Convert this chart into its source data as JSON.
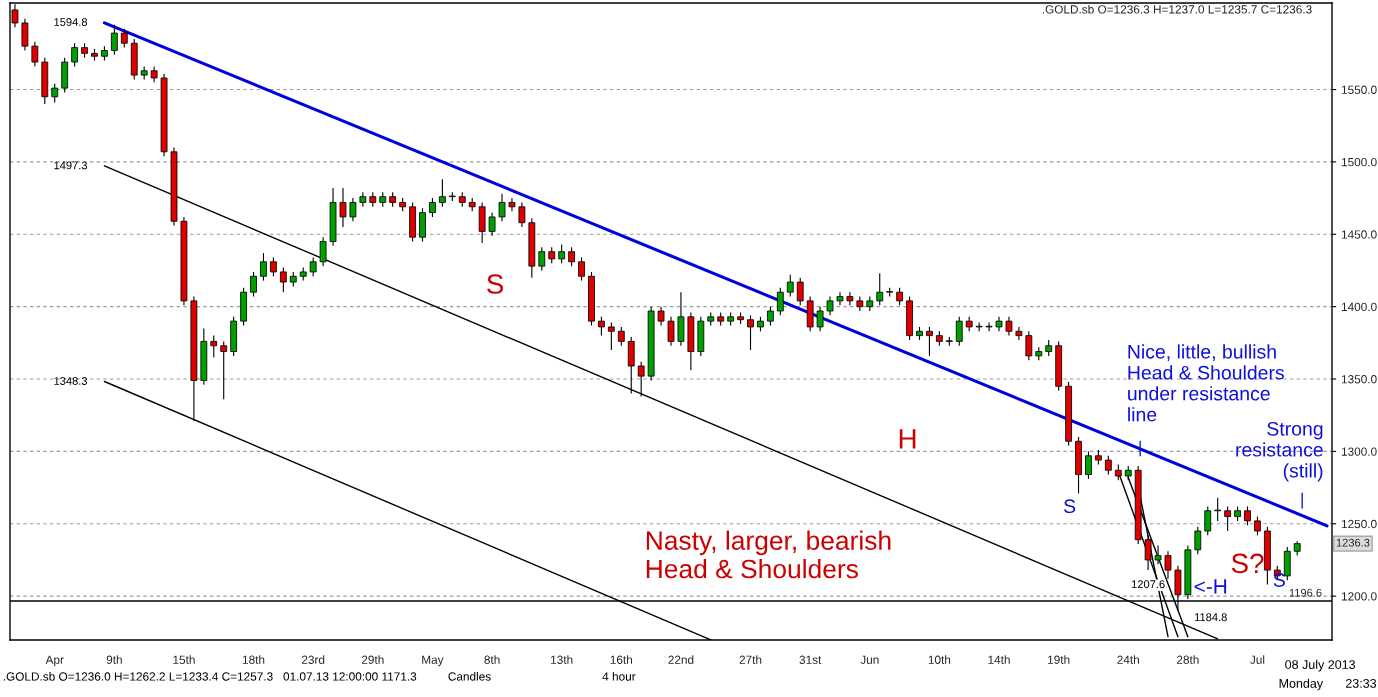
{
  "chart_data": {
    "type": "candlestick",
    "title": ".GOLD.sb O=1236.3 H=1237.0 L=1235.7 C=1236.3",
    "categories": [
      null,
      null,
      null,
      null,
      "Apr",
      null,
      null,
      null,
      null,
      null,
      "9th",
      null,
      null,
      null,
      null,
      null,
      null,
      "15th",
      null,
      null,
      null,
      null,
      null,
      null,
      "18th",
      null,
      null,
      null,
      null,
      null,
      "23rd",
      null,
      null,
      null,
      null,
      null,
      "29th",
      null,
      null,
      null,
      null,
      null,
      "May",
      null,
      null,
      null,
      null,
      null,
      "8th",
      null,
      null,
      null,
      null,
      null,
      null,
      "13th",
      null,
      null,
      null,
      null,
      null,
      "16th",
      null,
      null,
      null,
      null,
      null,
      "22nd",
      null,
      null,
      null,
      null,
      null,
      null,
      "27th",
      null,
      null,
      null,
      null,
      null,
      "31st",
      null,
      null,
      null,
      null,
      null,
      "Jun",
      null,
      null,
      null,
      null,
      null,
      null,
      "10th",
      null,
      null,
      null,
      null,
      null,
      "14th",
      null,
      null,
      null,
      null,
      null,
      "19th",
      null,
      null,
      null,
      null,
      null,
      null,
      "24th",
      null,
      null,
      null,
      null,
      null,
      "28th",
      null,
      null,
      null,
      null,
      null,
      null,
      "Jul",
      null,
      null,
      null,
      null,
      null,
      null,
      null
    ],
    "ohlc": [
      [
        1605,
        1609,
        1593,
        1596
      ],
      [
        1596,
        1599,
        1577,
        1580
      ],
      [
        1580,
        1583,
        1566,
        1569
      ],
      [
        1569,
        1572,
        1540,
        1545
      ],
      [
        1545,
        1554,
        1541,
        1551
      ],
      [
        1551,
        1572,
        1548,
        1569
      ],
      [
        1569,
        1582,
        1566,
        1579
      ],
      [
        1579,
        1582,
        1572,
        1575
      ],
      [
        1575,
        1578,
        1570,
        1573
      ],
      [
        1573,
        1580,
        1570,
        1577
      ],
      [
        1577,
        1594.8,
        1574,
        1589
      ],
      [
        1589,
        1592,
        1579,
        1582
      ],
      [
        1582,
        1585,
        1557,
        1560
      ],
      [
        1560,
        1566,
        1557,
        1563
      ],
      [
        1563,
        1566,
        1555,
        1558
      ],
      [
        1558,
        1561,
        1504,
        1507
      ],
      [
        1507,
        1510,
        1456,
        1459
      ],
      [
        1459,
        1462,
        1401,
        1404
      ],
      [
        1404,
        1407,
        1321,
        1349
      ],
      [
        1349,
        1385,
        1346,
        1376
      ],
      [
        1376,
        1380,
        1365,
        1373
      ],
      [
        1373,
        1376,
        1336,
        1369
      ],
      [
        1369,
        1393,
        1366,
        1390
      ],
      [
        1390,
        1413,
        1387,
        1410
      ],
      [
        1410,
        1424,
        1407,
        1421
      ],
      [
        1421,
        1437,
        1418,
        1431
      ],
      [
        1431,
        1434,
        1421,
        1424
      ],
      [
        1424,
        1427,
        1410,
        1417
      ],
      [
        1417,
        1424,
        1414,
        1421
      ],
      [
        1421,
        1427,
        1418,
        1424
      ],
      [
        1424,
        1434,
        1421,
        1431
      ],
      [
        1431,
        1448,
        1428,
        1445
      ],
      [
        1445,
        1482,
        1442,
        1472
      ],
      [
        1472,
        1482,
        1455,
        1462
      ],
      [
        1462,
        1475,
        1459,
        1472
      ],
      [
        1472,
        1479,
        1469,
        1476
      ],
      [
        1476,
        1479,
        1469,
        1472
      ],
      [
        1472,
        1479,
        1469,
        1476
      ],
      [
        1476,
        1479,
        1469,
        1472
      ],
      [
        1472,
        1475,
        1466,
        1469
      ],
      [
        1469,
        1472,
        1445,
        1448
      ],
      [
        1448,
        1468,
        1445,
        1465
      ],
      [
        1465,
        1475,
        1462,
        1472
      ],
      [
        1472,
        1488,
        1469,
        1476
      ],
      [
        1476,
        1479,
        1473,
        1476
      ],
      [
        1476,
        1479,
        1469,
        1472
      ],
      [
        1472,
        1475,
        1466,
        1469
      ],
      [
        1469,
        1472,
        1444,
        1452
      ],
      [
        1452,
        1465,
        1449,
        1462
      ],
      [
        1462,
        1478,
        1459,
        1472
      ],
      [
        1472,
        1475,
        1466,
        1469
      ],
      [
        1469,
        1472,
        1455,
        1458
      ],
      [
        1458,
        1461,
        1420,
        1428
      ],
      [
        1428,
        1441,
        1425,
        1438
      ],
      [
        1438,
        1441,
        1430,
        1433
      ],
      [
        1433,
        1443,
        1430,
        1438
      ],
      [
        1438,
        1441,
        1428,
        1431
      ],
      [
        1431,
        1434,
        1418,
        1421
      ],
      [
        1421,
        1424,
        1387,
        1390
      ],
      [
        1390,
        1393,
        1380,
        1386
      ],
      [
        1386,
        1389,
        1370,
        1383
      ],
      [
        1383,
        1386,
        1373,
        1376
      ],
      [
        1376,
        1379,
        1340,
        1359
      ],
      [
        1359,
        1362,
        1338,
        1352
      ],
      [
        1352,
        1400,
        1349,
        1397
      ],
      [
        1397,
        1400,
        1387,
        1390
      ],
      [
        1390,
        1393,
        1373,
        1376
      ],
      [
        1376,
        1410,
        1373,
        1393
      ],
      [
        1393,
        1396,
        1356,
        1369
      ],
      [
        1369,
        1393,
        1366,
        1390
      ],
      [
        1390,
        1396,
        1387,
        1393
      ],
      [
        1393,
        1396,
        1387,
        1390
      ],
      [
        1390,
        1396,
        1387,
        1393
      ],
      [
        1393,
        1396,
        1388,
        1391
      ],
      [
        1391,
        1394,
        1370,
        1386
      ],
      [
        1386,
        1393,
        1383,
        1390
      ],
      [
        1390,
        1400,
        1387,
        1397
      ],
      [
        1397,
        1413,
        1394,
        1410
      ],
      [
        1410,
        1422,
        1407,
        1417
      ],
      [
        1417,
        1420,
        1401,
        1404
      ],
      [
        1404,
        1407,
        1383,
        1386
      ],
      [
        1386,
        1400,
        1383,
        1397
      ],
      [
        1397,
        1407,
        1394,
        1404
      ],
      [
        1404,
        1410,
        1401,
        1407
      ],
      [
        1407,
        1410,
        1401,
        1404
      ],
      [
        1404,
        1407,
        1397,
        1400
      ],
      [
        1400,
        1407,
        1397,
        1404
      ],
      [
        1404,
        1423,
        1401,
        1410
      ],
      [
        1410,
        1413,
        1407,
        1410
      ],
      [
        1410,
        1413,
        1401,
        1404
      ],
      [
        1404,
        1407,
        1377,
        1380
      ],
      [
        1380,
        1386,
        1377,
        1383
      ],
      [
        1383,
        1386,
        1366,
        1380
      ],
      [
        1380,
        1383,
        1373,
        1376
      ],
      [
        1376,
        1379,
        1373,
        1376
      ],
      [
        1376,
        1393,
        1373,
        1390
      ],
      [
        1390,
        1393,
        1383,
        1386
      ],
      [
        1386,
        1389,
        1383,
        1386
      ],
      [
        1386,
        1389,
        1383,
        1386
      ],
      [
        1386,
        1393,
        1383,
        1390
      ],
      [
        1390,
        1393,
        1380,
        1383
      ],
      [
        1383,
        1386,
        1377,
        1380
      ],
      [
        1380,
        1383,
        1363,
        1366
      ],
      [
        1366,
        1372,
        1363,
        1369
      ],
      [
        1369,
        1377,
        1366,
        1373
      ],
      [
        1373,
        1376,
        1342,
        1345
      ],
      [
        1345,
        1348,
        1304,
        1307
      ],
      [
        1307,
        1310,
        1271,
        1284
      ],
      [
        1284,
        1300,
        1281,
        1297
      ],
      [
        1297,
        1301,
        1291,
        1294
      ],
      [
        1294,
        1297,
        1284,
        1287
      ],
      [
        1287,
        1291,
        1280,
        1283
      ],
      [
        1283,
        1290,
        1280,
        1287
      ],
      [
        1287,
        1290,
        1236,
        1239
      ],
      [
        1239,
        1242,
        1218,
        1225
      ],
      [
        1225,
        1235,
        1222,
        1228
      ],
      [
        1228,
        1231,
        1212,
        1218
      ],
      [
        1218,
        1221,
        1190,
        1201
      ],
      [
        1201,
        1235,
        1198,
        1232
      ],
      [
        1232,
        1248,
        1229,
        1245
      ],
      [
        1245,
        1262,
        1242,
        1259
      ],
      [
        1259,
        1268,
        1252,
        1259
      ],
      [
        1259,
        1262,
        1245,
        1255
      ],
      [
        1255,
        1262,
        1252,
        1259
      ],
      [
        1259,
        1262,
        1249,
        1252
      ],
      [
        1252,
        1255,
        1242,
        1245
      ],
      [
        1245,
        1248,
        1208,
        1218
      ],
      [
        1218,
        1221,
        1211,
        1214
      ],
      [
        1214,
        1234,
        1211,
        1231
      ],
      [
        1231,
        1238,
        1228,
        1236.3
      ],
      null,
      null,
      null
    ],
    "colors": [
      "#e00000",
      "#e00000",
      "#e00000",
      "#e00000",
      "#00a000",
      "#00a000",
      "#00a000",
      "#e00000",
      "#e00000",
      "#00a000",
      "#00a000",
      "#e00000",
      "#e00000",
      "#00a000",
      "#e00000",
      "#e00000",
      "#e00000",
      "#e00000",
      "#e00000",
      "#00a000",
      "#e00000",
      "#e00000",
      "#00a000",
      "#00a000",
      "#00a000",
      "#00a000",
      "#e00000",
      "#e00000",
      "#00a000",
      "#00a000",
      "#00a000",
      "#00a000",
      "#00a000",
      "#e00000",
      "#00a000",
      "#00a000",
      "#e00000",
      "#00a000",
      "#e00000",
      "#e00000",
      "#e00000",
      "#00a000",
      "#00a000",
      "#00a000",
      "#00a000",
      "#e00000",
      "#e00000",
      "#e00000",
      "#00a000",
      "#00a000",
      "#e00000",
      "#e00000",
      "#e00000",
      "#00a000",
      "#e00000",
      "#00a000",
      "#e00000",
      "#e00000",
      "#e00000",
      "#e00000",
      "#e00000",
      "#e00000",
      "#e00000",
      "#e00000",
      "#00a000",
      "#e00000",
      "#e00000",
      "#00a000",
      "#e00000",
      "#00a000",
      "#00a000",
      "#e00000",
      "#00a000",
      "#e00000",
      "#e00000",
      "#00a000",
      "#00a000",
      "#00a000",
      "#00a000",
      "#e00000",
      "#e00000",
      "#00a000",
      "#00a000",
      "#00a000",
      "#e00000",
      "#e00000",
      "#00a000",
      "#00a000",
      "#00a000",
      "#e00000",
      "#e00000",
      "#00a000",
      "#e00000",
      "#e00000",
      "#00a000",
      "#00a000",
      "#e00000",
      "#00a000",
      "#00a000",
      "#00a000",
      "#e00000",
      "#e00000",
      "#e00000",
      "#00a000",
      "#00a000",
      "#e00000",
      "#e00000",
      "#e00000",
      "#00a000",
      "#e00000",
      "#e00000",
      "#e00000",
      "#00a000",
      "#e00000",
      "#e00000",
      "#00a000",
      "#e00000",
      "#e00000",
      "#00a000",
      "#00a000",
      "#00a000",
      "#00a000",
      "#e00000",
      "#00a000",
      "#e00000",
      "#e00000",
      "#e00000",
      "#e00000",
      "#00a000",
      "#00a000",
      null,
      null,
      null
    ],
    "series": [
      {
        "type": "line",
        "color": "#0000dd",
        "values": [
          null,
          null,
          null,
          null,
          null,
          null,
          null,
          null,
          null,
          1596.1,
          null,
          null,
          null,
          null,
          null,
          null,
          null,
          null,
          null,
          null,
          null,
          null,
          null,
          null,
          null,
          null,
          null,
          null,
          null,
          null,
          null,
          null,
          null,
          null,
          null,
          null,
          null,
          null,
          null,
          null,
          null,
          null,
          null,
          null,
          null,
          null,
          null,
          null,
          null,
          null,
          null,
          null,
          null,
          null,
          null,
          null,
          null,
          null,
          null,
          null,
          null,
          null,
          null,
          null,
          null,
          null,
          null,
          null,
          null,
          null,
          null,
          null,
          null,
          null,
          null,
          null,
          null,
          null,
          null,
          null,
          null,
          null,
          null,
          null,
          null,
          null,
          null,
          null,
          null,
          null,
          null,
          null,
          null,
          null,
          null,
          null,
          null,
          null,
          null,
          null,
          null,
          null,
          null,
          null,
          null,
          null,
          null,
          null,
          null,
          null,
          null,
          null,
          null,
          null,
          null,
          null,
          null,
          null,
          null,
          null,
          null,
          null,
          null,
          null,
          null,
          null,
          null,
          null,
          null,
          null,
          null,
          null,
          1248.6
        ]
      },
      {
        "type": "line",
        "color": "#000000",
        "values": [
          null,
          null,
          null,
          null,
          null,
          null,
          null,
          null,
          null,
          1497.3,
          null,
          null,
          null,
          null,
          null,
          null,
          null,
          null,
          null,
          null,
          null,
          null,
          null,
          null,
          null,
          null,
          null,
          null,
          null,
          null,
          null,
          null,
          null,
          null,
          null,
          null,
          null,
          null,
          null,
          null,
          null,
          null,
          null,
          null,
          null,
          null,
          null,
          null,
          null,
          null,
          null,
          null,
          null,
          null,
          null,
          null,
          null,
          null,
          null,
          null,
          null,
          null,
          null,
          null,
          null,
          null,
          null,
          null,
          null,
          null,
          null,
          null,
          null,
          null,
          null,
          null,
          null,
          null,
          null,
          null,
          null,
          null,
          null,
          null,
          null,
          null,
          null,
          null,
          null,
          null,
          null,
          null,
          null,
          null,
          null,
          null,
          null,
          null,
          null,
          null,
          null,
          null,
          null,
          null,
          null,
          null,
          null,
          null,
          null,
          null,
          null,
          null,
          null,
          null,
          null,
          null,
          null,
          null,
          null,
          null,
          null,
          1170.5,
          null,
          null,
          null,
          null,
          null,
          null,
          null,
          null,
          null,
          null,
          null
        ]
      },
      {
        "type": "line",
        "color": "#000000",
        "values": [
          null,
          null,
          null,
          null,
          null,
          null,
          null,
          null,
          null,
          1348.3,
          null,
          null,
          null,
          null,
          null,
          null,
          null,
          null,
          null,
          null,
          null,
          null,
          null,
          null,
          null,
          null,
          null,
          null,
          null,
          null,
          null,
          null,
          null,
          null,
          null,
          null,
          null,
          null,
          null,
          null,
          null,
          null,
          null,
          null,
          null,
          null,
          null,
          null,
          null,
          null,
          null,
          null,
          null,
          null,
          null,
          null,
          null,
          null,
          null,
          null,
          null,
          null,
          null,
          null,
          null,
          null,
          null,
          null,
          null,
          null,
          1169.8,
          null,
          null,
          null,
          null,
          null,
          null,
          null,
          null,
          null,
          null,
          null,
          null,
          null,
          null,
          null,
          null,
          null,
          null,
          null,
          null,
          null,
          null,
          null,
          null,
          null,
          null,
          null,
          null,
          null,
          null,
          null,
          null,
          null,
          null,
          null,
          null,
          null,
          null,
          null,
          null,
          null,
          null,
          null,
          null,
          null,
          null,
          null,
          null,
          null,
          null,
          null,
          null,
          null,
          null,
          null,
          null,
          null,
          null,
          null,
          null,
          null,
          null
        ]
      },
      {
        "type": "line",
        "color": "#000000",
        "values": [
          null,
          null,
          null,
          null,
          null,
          null,
          null,
          null,
          null,
          null,
          null,
          null,
          null,
          null,
          null,
          null,
          null,
          null,
          null,
          null,
          null,
          null,
          null,
          null,
          null,
          null,
          null,
          null,
          null,
          null,
          null,
          null,
          null,
          null,
          null,
          null,
          null,
          null,
          null,
          null,
          null,
          null,
          null,
          null,
          null,
          null,
          null,
          null,
          null,
          null,
          null,
          null,
          null,
          null,
          null,
          null,
          null,
          null,
          null,
          null,
          null,
          null,
          null,
          null,
          null,
          null,
          null,
          null,
          null,
          null,
          null,
          null,
          null,
          null,
          null,
          null,
          null,
          null,
          null,
          null,
          null,
          null,
          null,
          null,
          null,
          null,
          null,
          null,
          null,
          null,
          null,
          null,
          null,
          null,
          null,
          null,
          null,
          null,
          null,
          null,
          null,
          null,
          null,
          null,
          null,
          null,
          null,
          null,
          null,
          null,
          null,
          1286,
          null,
          null,
          null,
          null,
          null,
          1172,
          null,
          null,
          null,
          null,
          null,
          null,
          null,
          null,
          null,
          null,
          null,
          null,
          null,
          null,
          null
        ]
      },
      {
        "type": "line",
        "color": "#000000",
        "values": [
          null,
          null,
          null,
          null,
          null,
          null,
          null,
          null,
          null,
          null,
          null,
          null,
          null,
          null,
          null,
          null,
          null,
          null,
          null,
          null,
          null,
          null,
          null,
          null,
          null,
          null,
          null,
          null,
          null,
          null,
          null,
          null,
          null,
          null,
          null,
          null,
          null,
          null,
          null,
          null,
          null,
          null,
          null,
          null,
          null,
          null,
          null,
          null,
          null,
          null,
          null,
          null,
          null,
          null,
          null,
          null,
          null,
          null,
          null,
          null,
          null,
          null,
          null,
          null,
          null,
          null,
          null,
          null,
          null,
          null,
          null,
          null,
          null,
          null,
          null,
          null,
          null,
          null,
          null,
          null,
          null,
          null,
          null,
          null,
          null,
          null,
          null,
          null,
          null,
          null,
          null,
          null,
          null,
          null,
          null,
          null,
          null,
          null,
          null,
          null,
          null,
          null,
          null,
          null,
          null,
          null,
          null,
          null,
          null,
          null,
          null,
          null,
          1282,
          null,
          null,
          null,
          null,
          null,
          1172,
          null,
          null,
          null,
          null,
          null,
          null,
          null,
          null,
          null,
          null,
          null,
          null,
          null,
          null
        ]
      },
      {
        "type": "line",
        "color": "#000000",
        "values": [
          null,
          null,
          null,
          null,
          null,
          null,
          null,
          null,
          null,
          null,
          null,
          null,
          null,
          null,
          null,
          null,
          null,
          null,
          null,
          null,
          null,
          null,
          null,
          null,
          null,
          null,
          null,
          null,
          null,
          null,
          null,
          null,
          null,
          null,
          null,
          null,
          null,
          null,
          null,
          null,
          null,
          null,
          null,
          null,
          null,
          null,
          null,
          null,
          null,
          null,
          null,
          null,
          null,
          null,
          null,
          null,
          null,
          null,
          null,
          null,
          null,
          null,
          null,
          null,
          null,
          null,
          null,
          null,
          null,
          null,
          null,
          null,
          null,
          null,
          null,
          null,
          null,
          null,
          null,
          null,
          null,
          null,
          null,
          null,
          null,
          null,
          null,
          null,
          null,
          null,
          null,
          null,
          null,
          null,
          null,
          null,
          null,
          null,
          null,
          null,
          null,
          null,
          null,
          null,
          null,
          null,
          null,
          null,
          null,
          null,
          null,
          null,
          null,
          1276,
          null,
          null,
          1172,
          null,
          null,
          null,
          null,
          null,
          null,
          null,
          null,
          null,
          null,
          null,
          null,
          null,
          null,
          null,
          null
        ]
      }
    ],
    "ylim": [
      1169.7,
      1609.8
    ],
    "yticks": [
      {
        "value": 1200,
        "label": "1200.0"
      },
      {
        "value": 1250,
        "label": "1250.0"
      },
      {
        "value": 1300,
        "label": "1300.0"
      },
      {
        "value": 1350,
        "label": "1350.0"
      },
      {
        "value": 1400,
        "label": "1400.0"
      },
      {
        "value": 1450,
        "label": "1450.0"
      },
      {
        "value": 1500,
        "label": "1500.0"
      },
      {
        "value": 1550,
        "label": "1550.0"
      }
    ],
    "grid": "y",
    "ref_lines": [
      {
        "axis": "y",
        "value": 1196.6,
        "label": "1196.6",
        "color": "#000000"
      }
    ],
    "annotations": [
      "1594.8",
      "1497.3",
      "1348.3",
      "S",
      "H",
      "Nasty, larger, bearish\nHead & Shoulders",
      "S",
      "Nice, little, bullish\nHead & Shoulders\nunder resistance\nline",
      "|",
      "Strong\nresistance\n(still)",
      "|",
      "<-H",
      "S?",
      "S",
      {
        "text": "1207.6",
        "y": 1207.6
      },
      {
        "text": "1184.8",
        "y": 1184.8
      },
      "1236.3",
      ".GOLD.sb O=1236.0 H=1262.2 L=1233.4 C=1257.3   01.07.13 12:00:00 1171.3",
      "Candles",
      "4 hour",
      "08 July 2013",
      "Monday",
      "23:33"
    ]
  }
}
